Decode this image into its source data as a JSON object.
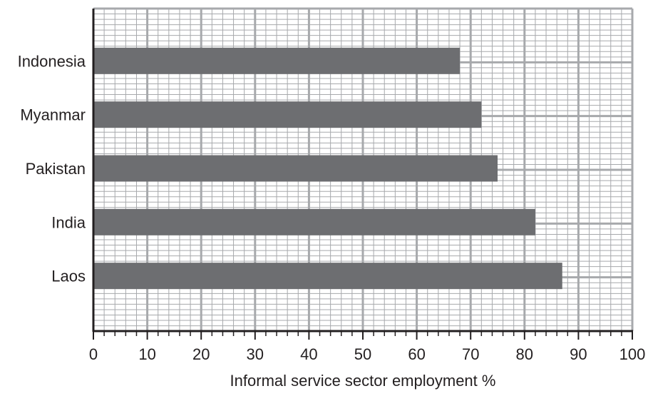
{
  "chart_data": {
    "type": "bar",
    "orientation": "horizontal",
    "categories": [
      "Indonesia",
      "Myanmar",
      "Pakistan",
      "India",
      "Laos"
    ],
    "values": [
      68,
      72,
      75,
      82,
      87
    ],
    "xlabel": "Informal service sector employment %",
    "ylabel": "",
    "xlim": [
      0,
      100
    ],
    "xticks": [
      "0",
      "10",
      "20",
      "30",
      "40",
      "50",
      "60",
      "70",
      "80",
      "90",
      "100"
    ],
    "grid": true,
    "bar_color": "#6d6e71",
    "grid_color": "#a7a9ac",
    "axis_color": "#231f20"
  }
}
